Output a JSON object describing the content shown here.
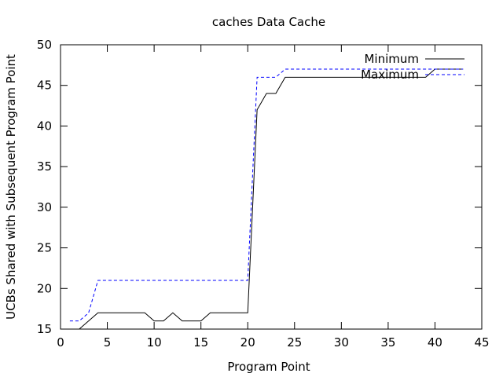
{
  "chart_data": {
    "type": "line",
    "title": "caches Data Cache",
    "xlabel": "Program Point",
    "ylabel": "UCBs Shared with Subsequent Program Point",
    "xlim": [
      0,
      45
    ],
    "ylim": [
      15,
      50
    ],
    "xticks": [
      0,
      5,
      10,
      15,
      20,
      25,
      30,
      35,
      40,
      45
    ],
    "yticks": [
      15,
      20,
      25,
      30,
      35,
      40,
      45,
      50
    ],
    "grid": false,
    "legend_position": "top-right",
    "series": [
      {
        "name": "Minimum",
        "color": "#000000",
        "dash": "solid",
        "x": [
          2,
          3,
          4,
          5,
          6,
          7,
          8,
          9,
          10,
          11,
          12,
          13,
          14,
          15,
          16,
          17,
          18,
          19,
          20,
          21,
          22,
          23,
          24,
          25,
          26,
          27,
          28,
          29,
          30,
          31,
          32,
          33,
          34,
          35,
          36,
          37,
          38,
          39,
          40,
          41,
          42,
          43
        ],
        "values": [
          15,
          16,
          17,
          17,
          17,
          17,
          17,
          17,
          16,
          16,
          17,
          16,
          16,
          16,
          17,
          17,
          17,
          17,
          17,
          42,
          44,
          44,
          46,
          46,
          46,
          46,
          46,
          46,
          46,
          46,
          46,
          46,
          46,
          46,
          46,
          46,
          46,
          46,
          47,
          47,
          47,
          47
        ]
      },
      {
        "name": "Maximum",
        "color": "#0000ff",
        "dash": "dashed",
        "x": [
          1,
          2,
          3,
          4,
          5,
          6,
          7,
          8,
          9,
          10,
          11,
          12,
          13,
          14,
          15,
          16,
          17,
          18,
          19,
          20,
          21,
          22,
          23,
          24,
          25,
          26,
          27,
          28,
          29,
          30,
          31,
          32,
          33,
          34,
          35,
          36,
          37,
          38,
          39,
          40,
          41,
          42,
          43
        ],
        "values": [
          16,
          16,
          17,
          21,
          21,
          21,
          21,
          21,
          21,
          21,
          21,
          21,
          21,
          21,
          21,
          21,
          21,
          21,
          21,
          21,
          46,
          46,
          46,
          47,
          47,
          47,
          47,
          47,
          47,
          47,
          47,
          47,
          47,
          47,
          47,
          47,
          47,
          47,
          47,
          47,
          47,
          47,
          47
        ]
      }
    ]
  }
}
